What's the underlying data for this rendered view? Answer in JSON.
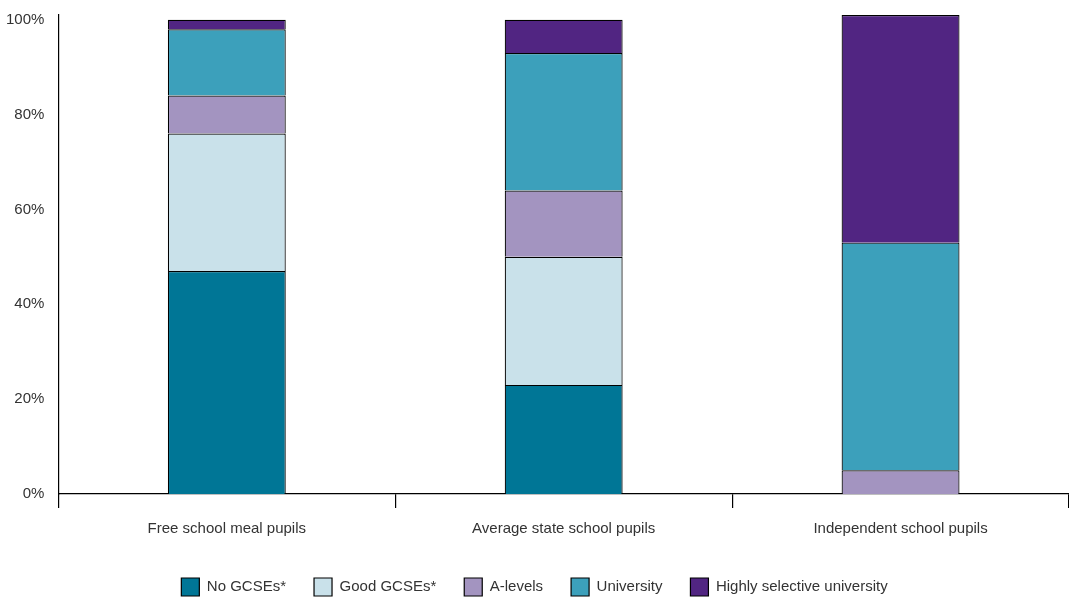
{
  "chart_data": {
    "type": "bar",
    "stacked": true,
    "categories": [
      "Free school meal pupils",
      "Average state school pupils",
      "Independent school pupils"
    ],
    "series": [
      {
        "name": "No GCSEs*",
        "color": "#007696",
        "values": [
          47,
          23,
          0
        ]
      },
      {
        "name": "Good GCSEs*",
        "color": "#c9e1ea",
        "values": [
          29,
          27,
          0
        ]
      },
      {
        "name": "A-levels",
        "color": "#a394c0",
        "values": [
          8,
          14,
          5
        ]
      },
      {
        "name": "University",
        "color": "#3ca0bb",
        "values": [
          14,
          29,
          48
        ]
      },
      {
        "name": "Highly selective university",
        "color": "#512582",
        "values": [
          2,
          7,
          48
        ]
      }
    ],
    "ylim": [
      0,
      101
    ],
    "yticks": [
      {
        "value": 0,
        "label": "0%"
      },
      {
        "value": 20,
        "label": "20%"
      },
      {
        "value": 40,
        "label": "40%"
      },
      {
        "value": 60,
        "label": "60%"
      },
      {
        "value": 80,
        "label": "80%"
      },
      {
        "value": 100,
        "label": "100%"
      }
    ],
    "grid": false,
    "legend": "bottom"
  }
}
